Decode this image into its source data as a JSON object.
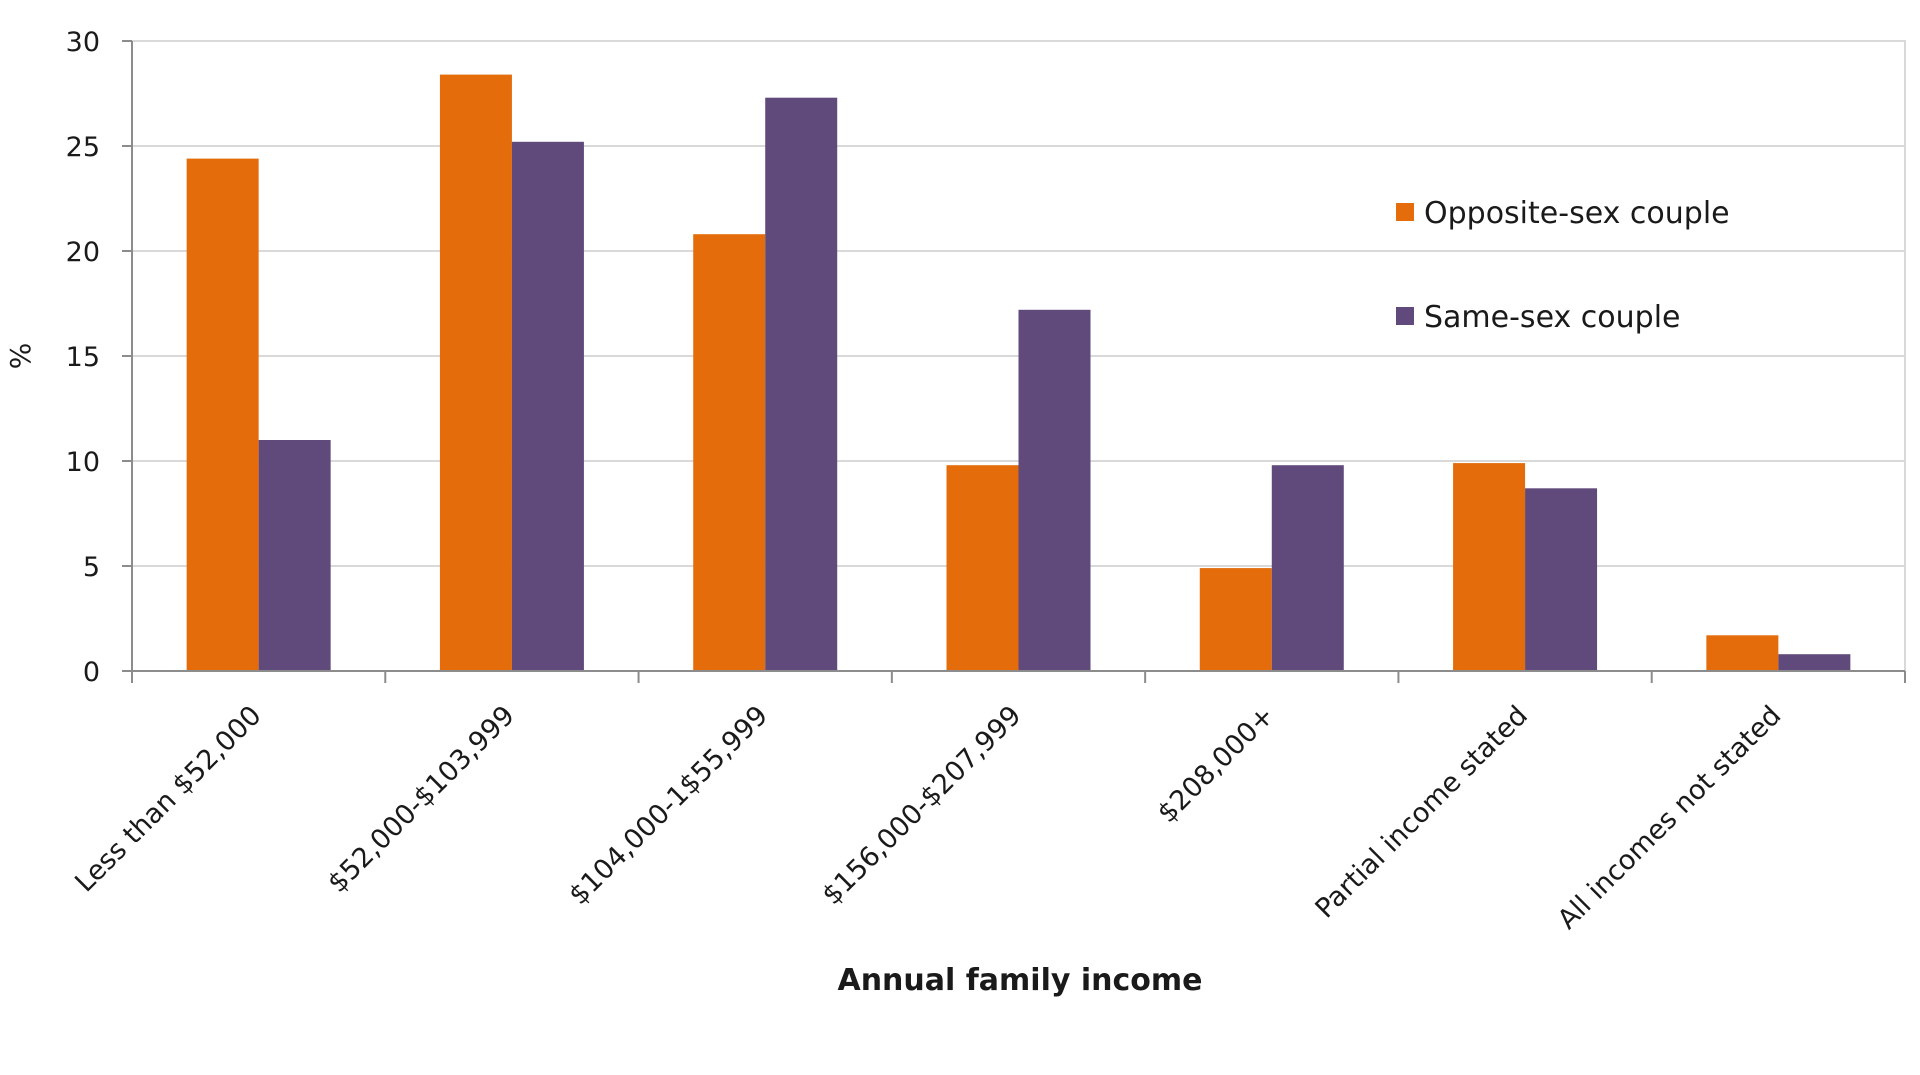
{
  "chart_data": {
    "type": "bar",
    "title": "",
    "xlabel": "Annual family income",
    "ylabel": "%",
    "ylim": [
      0,
      30
    ],
    "yticks": [
      "0",
      "5",
      "10",
      "15",
      "20",
      "25",
      "30"
    ],
    "grid": true,
    "legend_position": "top-right",
    "categories": [
      "Less than $52,000",
      "$52,000-$103,999",
      "$104,000-1$55,999",
      "$156,000-$207,999",
      "$208,000+",
      "Partial income stated",
      "All incomes not stated"
    ],
    "series": [
      {
        "name": "Opposite-sex couple",
        "color": "#E46C0A",
        "values": [
          24.4,
          28.4,
          20.8,
          9.8,
          4.9,
          9.9,
          1.7
        ]
      },
      {
        "name": "Same-sex couple",
        "color": "#604A7B",
        "values": [
          11.0,
          25.2,
          27.3,
          17.2,
          9.8,
          8.7,
          0.8
        ]
      }
    ]
  }
}
